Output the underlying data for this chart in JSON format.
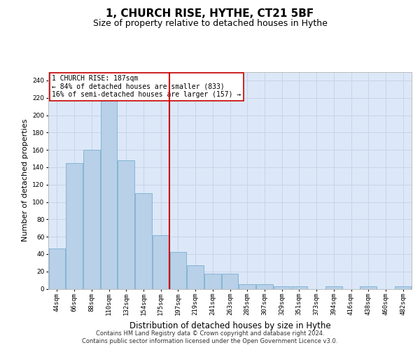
{
  "title": "1, CHURCH RISE, HYTHE, CT21 5BF",
  "subtitle": "Size of property relative to detached houses in Hythe",
  "xlabel": "Distribution of detached houses by size in Hythe",
  "ylabel": "Number of detached properties",
  "bar_color": "#b8d0e8",
  "bar_edge_color": "#7aafd0",
  "vline_color": "#cc0000",
  "annotation_text": "1 CHURCH RISE: 187sqm\n← 84% of detached houses are smaller (833)\n16% of semi-detached houses are larger (157) →",
  "annotation_box_edge": "#cc0000",
  "categories": [
    "44sqm",
    "66sqm",
    "88sqm",
    "110sqm",
    "132sqm",
    "154sqm",
    "175sqm",
    "197sqm",
    "219sqm",
    "241sqm",
    "263sqm",
    "285sqm",
    "307sqm",
    "329sqm",
    "351sqm",
    "373sqm",
    "394sqm",
    "416sqm",
    "438sqm",
    "460sqm",
    "482sqm"
  ],
  "values": [
    46,
    145,
    160,
    220,
    148,
    110,
    62,
    42,
    27,
    17,
    17,
    5,
    5,
    3,
    3,
    0,
    3,
    0,
    3,
    0,
    3
  ],
  "ylim": [
    0,
    250
  ],
  "yticks": [
    0,
    20,
    40,
    60,
    80,
    100,
    120,
    140,
    160,
    180,
    200,
    220,
    240
  ],
  "grid_color": "#c8d4e8",
  "bg_color": "#dce8f8",
  "footer_line1": "Contains HM Land Registry data © Crown copyright and database right 2024.",
  "footer_line2": "Contains public sector information licensed under the Open Government Licence v3.0.",
  "title_fontsize": 11,
  "subtitle_fontsize": 9,
  "axis_label_fontsize": 8,
  "tick_fontsize": 6.5,
  "footer_fontsize": 6
}
